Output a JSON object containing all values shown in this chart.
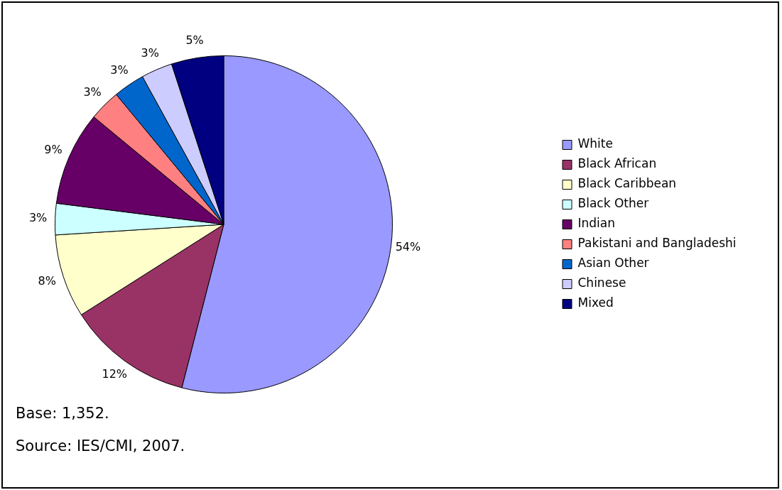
{
  "chart_data": {
    "type": "pie",
    "categories": [
      "White",
      "Black African",
      "Black Caribbean",
      "Black Other",
      "Indian",
      "Pakistani and Bangladeshi",
      "Asian Other",
      "Chinese",
      "Mixed"
    ],
    "values": [
      54,
      12,
      8,
      3,
      9,
      3,
      3,
      3,
      5
    ],
    "value_labels": [
      "54%",
      "12%",
      "8%",
      "3%",
      "9%",
      "3%",
      "3%",
      "3%",
      "5%"
    ],
    "colors": [
      "#9999ff",
      "#993366",
      "#ffffcc",
      "#ccffff",
      "#660066",
      "#ff8080",
      "#0066cc",
      "#ccccff",
      "#000080"
    ],
    "legend": "right",
    "annotations": [
      "Base: 1,352.",
      "Source: IES/CMI, 2007."
    ]
  }
}
